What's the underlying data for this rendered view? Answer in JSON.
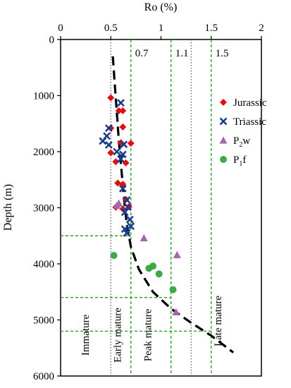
{
  "chart_data": {
    "type": "scatter",
    "x_axis": {
      "title": "Ro (%)",
      "range": [
        0,
        2
      ],
      "ticks": [
        "0",
        "0.5",
        "1",
        "1.5",
        "2"
      ],
      "position": "top"
    },
    "y_axis": {
      "title": "Depth (m)",
      "range": [
        0,
        6000
      ],
      "reversed": true,
      "ticks": [
        "0",
        "1000",
        "2000",
        "3000",
        "4000",
        "5000",
        "6000"
      ]
    },
    "reference_lines": [
      {
        "ro": 0.5,
        "label": "",
        "style": "dotted-black"
      },
      {
        "ro": 0.7,
        "label": "0.7",
        "style": "dashed-green"
      },
      {
        "ro": 1.1,
        "label": "1.1",
        "style": "dashed-green"
      },
      {
        "ro": 1.3,
        "label": "",
        "style": "dotted-black"
      },
      {
        "ro": 1.5,
        "label": "1.5",
        "style": "dashed-green"
      }
    ],
    "depth_lines": [
      {
        "depth": 3500,
        "to_ro": 0.7
      },
      {
        "depth": 4600,
        "to_ro": 1.1
      },
      {
        "depth": 5200,
        "to_ro": 1.5
      }
    ],
    "zones": [
      {
        "label": "Immature",
        "ro": 0.28
      },
      {
        "label": "Early mature",
        "ro": 0.6
      },
      {
        "label": "Peak mature",
        "ro": 0.9
      },
      {
        "label": "Late mature",
        "ro": 1.6
      }
    ],
    "trend_line": [
      [
        0.52,
        300
      ],
      [
        0.54,
        800
      ],
      [
        0.56,
        1300
      ],
      [
        0.58,
        1800
      ],
      [
        0.6,
        2200
      ],
      [
        0.62,
        2600
      ],
      [
        0.64,
        3000
      ],
      [
        0.66,
        3300
      ],
      [
        0.7,
        3700
      ],
      [
        0.78,
        4100
      ],
      [
        0.92,
        4500
      ],
      [
        1.1,
        4800
      ],
      [
        1.3,
        5050
      ],
      [
        1.5,
        5280
      ],
      [
        1.72,
        5580
      ]
    ],
    "series": [
      {
        "name": "Jurassic",
        "marker": "diamond",
        "color": "#dd1111",
        "points": [
          [
            0.5,
            1040
          ],
          [
            0.58,
            1270
          ],
          [
            0.62,
            1270
          ],
          [
            0.5,
            1580
          ],
          [
            0.62,
            1560
          ],
          [
            0.6,
            1840
          ],
          [
            0.7,
            1850
          ],
          [
            0.5,
            2020
          ],
          [
            0.55,
            2180
          ],
          [
            0.65,
            2200
          ],
          [
            0.57,
            2560
          ],
          [
            0.62,
            2580
          ],
          [
            0.65,
            2850
          ],
          [
            0.68,
            2980
          ],
          [
            0.62,
            3020
          ],
          [
            0.55,
            2990
          ]
        ]
      },
      {
        "name": "Triassic",
        "marker": "x",
        "color": "#1a3c8c",
        "points": [
          [
            0.6,
            1130
          ],
          [
            0.48,
            1580
          ],
          [
            0.46,
            1720
          ],
          [
            0.42,
            1810
          ],
          [
            0.48,
            1880
          ],
          [
            0.56,
            2000
          ],
          [
            0.63,
            1870
          ],
          [
            0.62,
            2050
          ],
          [
            0.6,
            2130
          ],
          [
            0.62,
            2660
          ],
          [
            0.66,
            2860
          ],
          [
            0.67,
            2990
          ],
          [
            0.64,
            3080
          ],
          [
            0.69,
            3210
          ],
          [
            0.7,
            3330
          ],
          [
            0.64,
            3380
          ],
          [
            0.66,
            3450
          ]
        ]
      },
      {
        "name": "P2w",
        "legend_main": "P",
        "legend_sub": "2",
        "legend_tail": "w",
        "marker": "triangle",
        "color": "#a467ab",
        "points": [
          [
            0.58,
            2920
          ],
          [
            0.56,
            2960
          ],
          [
            0.83,
            3540
          ],
          [
            1.16,
            3840
          ],
          [
            1.15,
            4860
          ]
        ]
      },
      {
        "name": "P1f",
        "legend_main": "P",
        "legend_sub": "1",
        "legend_tail": "f",
        "marker": "circle",
        "color": "#3daa4a",
        "points": [
          [
            0.53,
            3850
          ],
          [
            0.88,
            4080
          ],
          [
            0.92,
            4040
          ],
          [
            0.98,
            4180
          ],
          [
            1.12,
            4460
          ]
        ]
      }
    ]
  }
}
